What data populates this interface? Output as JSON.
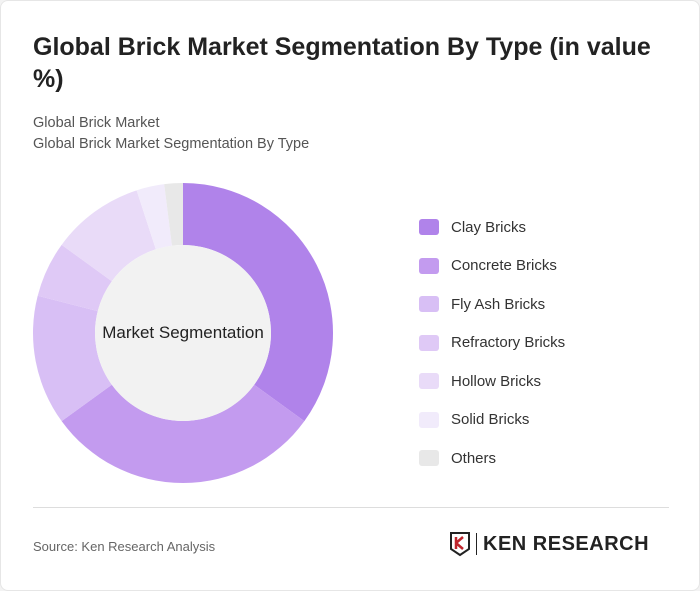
{
  "title": "Global Brick Market Segmentation By Type (in value %)",
  "subtitle1": "Global Brick Market",
  "subtitle2": "Global Brick Market Segmentation By Type",
  "source": "Source: Ken Research Analysis",
  "logo_text": "KEN RESEARCH",
  "chart_data": {
    "type": "pie",
    "donut": true,
    "center_label": "Market Segmentation",
    "legend_position": "right",
    "categories": [
      "Clay Bricks",
      "Concrete Bricks",
      "Fly Ash Bricks",
      "Refractory Bricks",
      "Hollow Bricks",
      "Solid Bricks",
      "Others"
    ],
    "values": [
      35,
      30,
      14,
      6,
      10,
      3,
      2
    ],
    "colors": [
      "#b083ea",
      "#c39bef",
      "#d8bff5",
      "#dfc9f6",
      "#e9dbf8",
      "#f1ebfb",
      "#e8e8e8"
    ]
  }
}
